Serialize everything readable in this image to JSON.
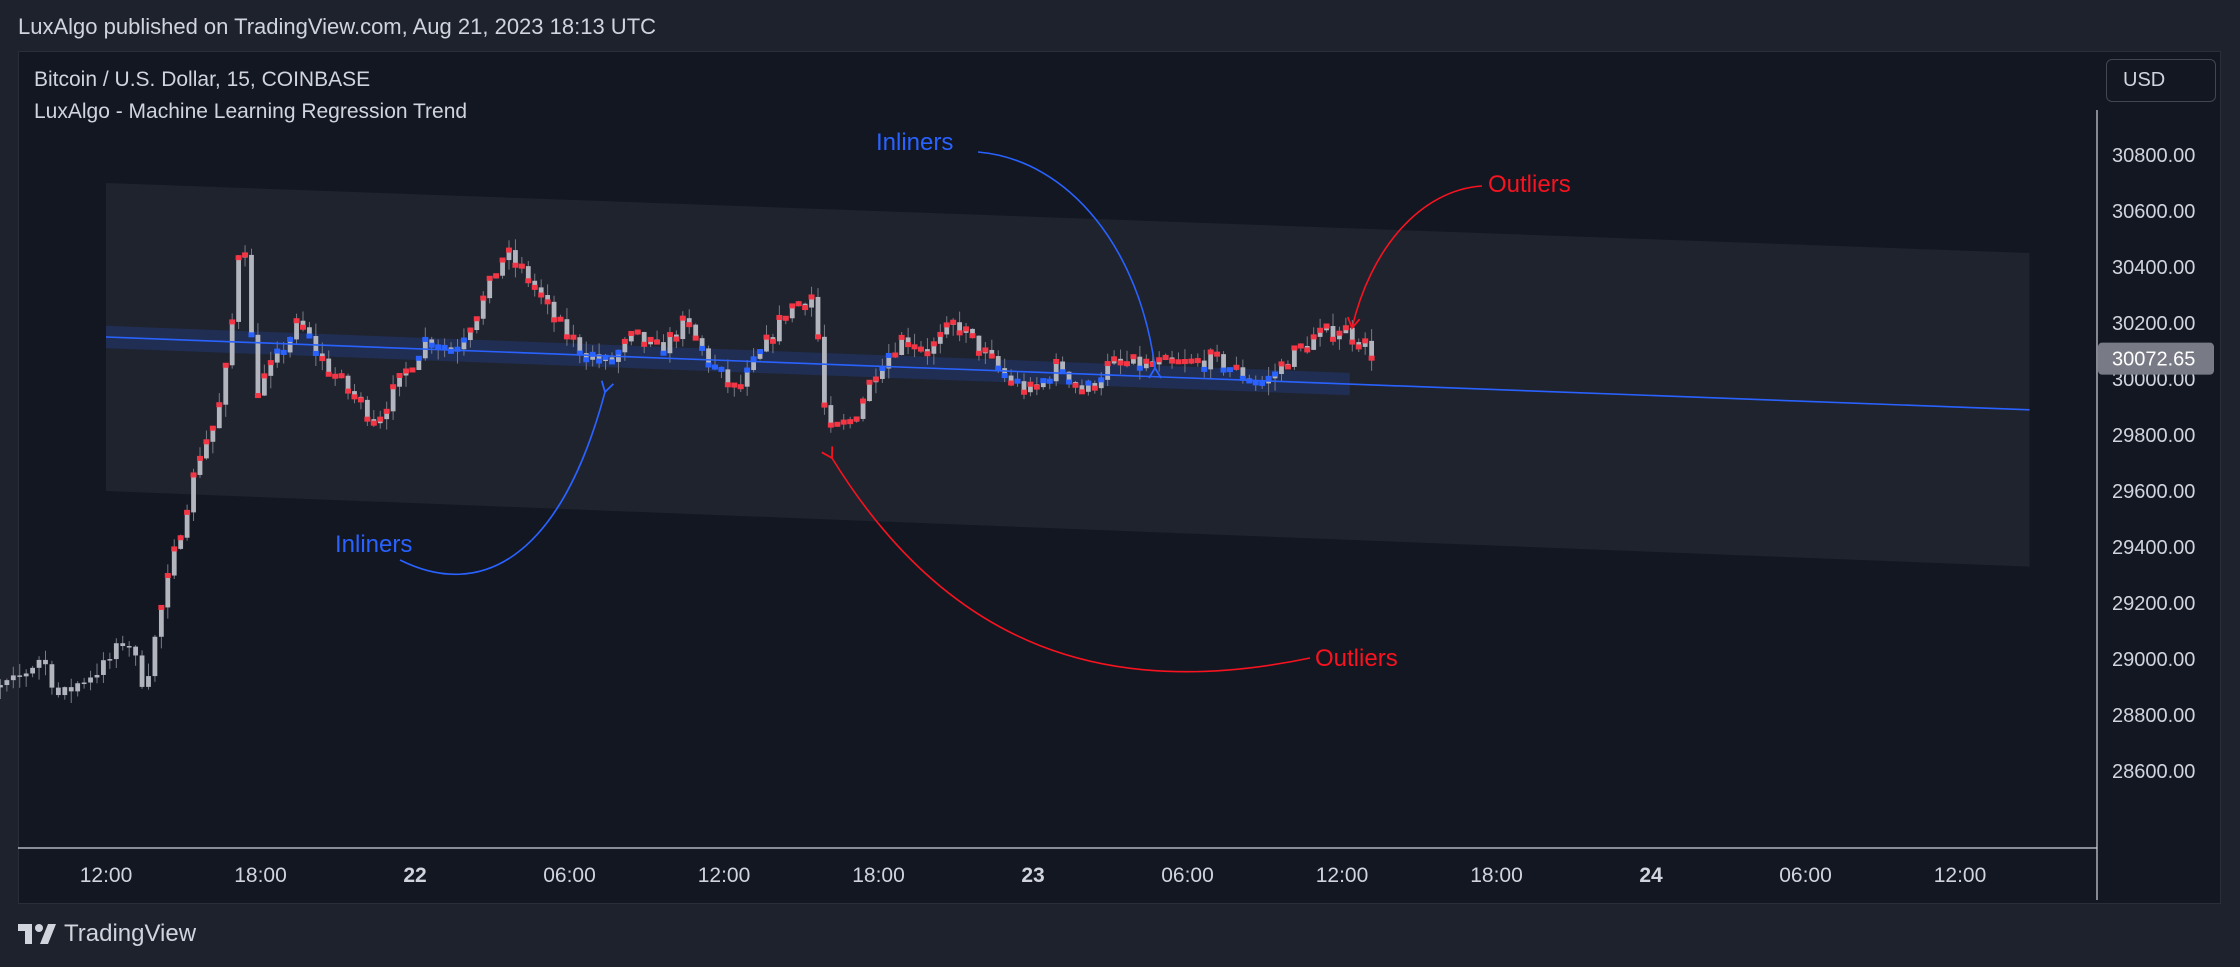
{
  "header": {
    "published": "LuxAlgo published on TradingView.com, Aug 21, 2023 18:13 UTC"
  },
  "legend": {
    "symbol": "Bitcoin / U.S. Dollar, 15, COINBASE",
    "indicator": "LuxAlgo - Machine Learning Regression Trend"
  },
  "currency_button": "USD",
  "footer": {
    "brand": "TradingView"
  },
  "colors": {
    "background": "#131722",
    "candle": "#b2b5be",
    "outlier": "#f23645",
    "inlier": "#2962ff",
    "annotation_blue": "#2962ff",
    "annotation_red": "#f7131f"
  },
  "chart_data": {
    "type": "candlestick",
    "title": "",
    "y_axis": {
      "min": 28500,
      "max": 30900,
      "ticks": [
        30800,
        30600,
        30400,
        30200,
        30000,
        29800,
        29600,
        29400,
        29200,
        29000,
        28800,
        28600
      ],
      "tick_labels": [
        "30800.00",
        "30600.00",
        "30400.00",
        "30200.00",
        "30000.00",
        "29800.00",
        "29600.00",
        "29400.00",
        "29200.00",
        "29000.00",
        "28800.00",
        "28600.00"
      ],
      "last_price_label": "30072.65",
      "last_price": 30072.65
    },
    "x_axis": {
      "start_hour": 6.4,
      "end_hour": 81,
      "ticks": [
        {
          "hour": 12,
          "label": "12:00",
          "bold": false
        },
        {
          "hour": 18,
          "label": "18:00",
          "bold": false
        },
        {
          "hour": 24,
          "label": "22",
          "bold": true
        },
        {
          "hour": 30,
          "label": "06:00",
          "bold": false
        },
        {
          "hour": 36,
          "label": "12:00",
          "bold": false
        },
        {
          "hour": 42,
          "label": "18:00",
          "bold": false
        },
        {
          "hour": 48,
          "label": "23",
          "bold": true
        },
        {
          "hour": 54,
          "label": "06:00",
          "bold": false
        },
        {
          "hour": 60,
          "label": "12:00",
          "bold": false
        },
        {
          "hour": 66,
          "label": "18:00",
          "bold": false
        },
        {
          "hour": 72,
          "label": "24",
          "bold": true
        },
        {
          "hour": 78,
          "label": "06:00",
          "bold": false
        },
        {
          "hour": 84,
          "label": "12:00",
          "bold": false
        }
      ]
    },
    "regression": {
      "start_hour": 12,
      "start_value": 30150,
      "end_hour": 86.7,
      "end_value": 29890,
      "band_start_hour": 12,
      "band_upper_start": 30700,
      "band_upper_end": 30450,
      "band_lower_start": 29600,
      "band_lower_end": 29330,
      "inlier_band_width": 80,
      "inlier_band_end_hour": 60.3
    },
    "price_path": [
      [
        6.4,
        28820
      ],
      [
        7.5,
        28880
      ],
      [
        8.5,
        28920
      ],
      [
        9.5,
        29010
      ],
      [
        10.2,
        28860
      ],
      [
        11,
        28920
      ],
      [
        12,
        28980
      ],
      [
        12.8,
        29080
      ],
      [
        13.5,
        28900
      ],
      [
        14.2,
        29200
      ],
      [
        15,
        29500
      ],
      [
        15.7,
        29750
      ],
      [
        16.3,
        29850
      ],
      [
        16.8,
        30100
      ],
      [
        17.3,
        30600
      ],
      [
        17.8,
        29950
      ],
      [
        18.5,
        30050
      ],
      [
        19.5,
        30200
      ],
      [
        20.5,
        30050
      ],
      [
        21.5,
        29950
      ],
      [
        22.5,
        29850
      ],
      [
        23.5,
        30000
      ],
      [
        24.5,
        30150
      ],
      [
        25.5,
        30100
      ],
      [
        26.5,
        30250
      ],
      [
        27.5,
        30450
      ],
      [
        28.5,
        30350
      ],
      [
        29.5,
        30200
      ],
      [
        30.5,
        30100
      ],
      [
        31.5,
        30050
      ],
      [
        32.5,
        30150
      ],
      [
        33.5,
        30100
      ],
      [
        34.5,
        30200
      ],
      [
        35.5,
        30050
      ],
      [
        36.5,
        29950
      ],
      [
        37.5,
        30100
      ],
      [
        38.5,
        30250
      ],
      [
        39.5,
        30300
      ],
      [
        40,
        29800
      ],
      [
        41,
        29850
      ],
      [
        42,
        30050
      ],
      [
        43,
        30150
      ],
      [
        44,
        30100
      ],
      [
        45,
        30200
      ],
      [
        46,
        30100
      ],
      [
        47,
        30000
      ],
      [
        48,
        29950
      ],
      [
        49,
        30050
      ],
      [
        50,
        29950
      ],
      [
        51,
        30050
      ],
      [
        52,
        30050
      ],
      [
        53,
        30050
      ],
      [
        54,
        30050
      ],
      [
        55,
        30070
      ],
      [
        56,
        30020
      ],
      [
        57,
        29980
      ],
      [
        58,
        30080
      ],
      [
        59,
        30150
      ],
      [
        60,
        30180
      ],
      [
        60.8,
        30130
      ],
      [
        61.3,
        30080
      ]
    ],
    "annotations": [
      {
        "text": "Inliners",
        "color": "#2962ff"
      },
      {
        "text": "Inliners",
        "color": "#2962ff"
      },
      {
        "text": "Outliers",
        "color": "#f7131f"
      },
      {
        "text": "Outliers",
        "color": "#f7131f"
      }
    ]
  }
}
